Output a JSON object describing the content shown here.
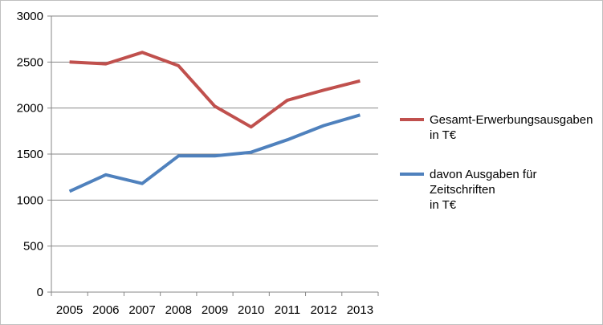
{
  "chart_data": {
    "type": "line",
    "x": [
      "2005",
      "2006",
      "2007",
      "2008",
      "2009",
      "2010",
      "2011",
      "2012",
      "2013"
    ],
    "series": [
      {
        "name": "Gesamt-Erwerbungsausgaben in T€",
        "legend_lines": [
          "Gesamt-Erwerbungsausgaben",
          "in T€"
        ],
        "color": "#c0504d",
        "values": [
          2500,
          2480,
          2605,
          2460,
          2020,
          1795,
          2085,
          2195,
          2295
        ]
      },
      {
        "name": "davon Ausgaben für Zeitschriften in T€",
        "legend_lines": [
          "davon Ausgaben für",
          "Zeitschriften",
          "in T€"
        ],
        "color": "#4f81bd",
        "values": [
          1095,
          1275,
          1180,
          1480,
          1480,
          1520,
          1655,
          1810,
          1925
        ]
      }
    ],
    "y_ticks": [
      "0",
      "500",
      "1000",
      "1500",
      "2000",
      "2500",
      "3000"
    ],
    "ylim": [
      0,
      3000
    ],
    "xlabel": "",
    "ylabel": "",
    "title": "",
    "grid": true,
    "legend_position": "right"
  }
}
